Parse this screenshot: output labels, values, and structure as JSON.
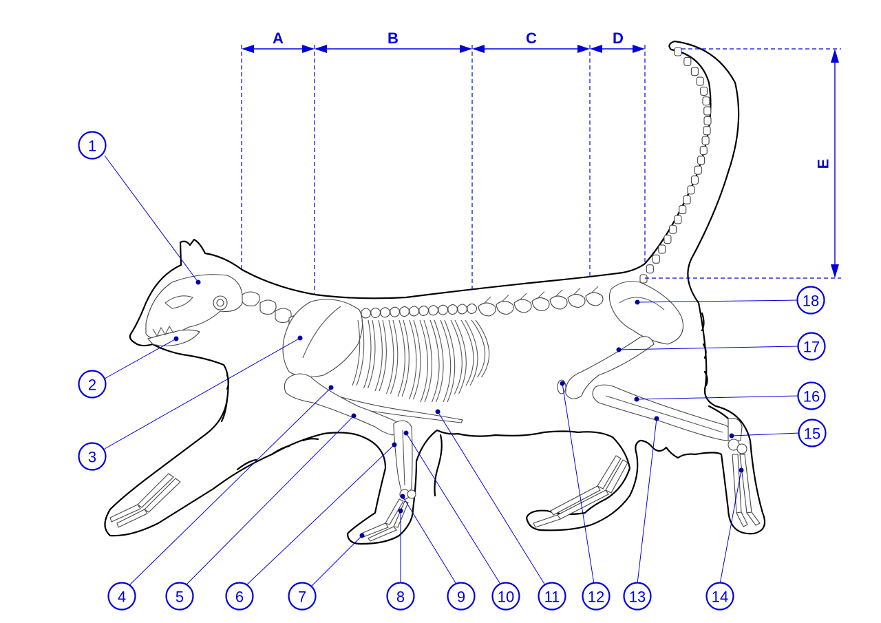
{
  "diagram": {
    "segments": [
      {
        "id": "A",
        "label": "A"
      },
      {
        "id": "B",
        "label": "B"
      },
      {
        "id": "C",
        "label": "C"
      },
      {
        "id": "D",
        "label": "D"
      },
      {
        "id": "E",
        "label": "E"
      }
    ],
    "callouts": [
      {
        "n": "1"
      },
      {
        "n": "2"
      },
      {
        "n": "3"
      },
      {
        "n": "4"
      },
      {
        "n": "5"
      },
      {
        "n": "6"
      },
      {
        "n": "7"
      },
      {
        "n": "8"
      },
      {
        "n": "9"
      },
      {
        "n": "10"
      },
      {
        "n": "11"
      },
      {
        "n": "12"
      },
      {
        "n": "13"
      },
      {
        "n": "14"
      },
      {
        "n": "15"
      },
      {
        "n": "16"
      },
      {
        "n": "17"
      },
      {
        "n": "18"
      }
    ],
    "colors": {
      "annotation": "#0000dd",
      "outline": "#000000",
      "bone": "#ffffff"
    }
  }
}
